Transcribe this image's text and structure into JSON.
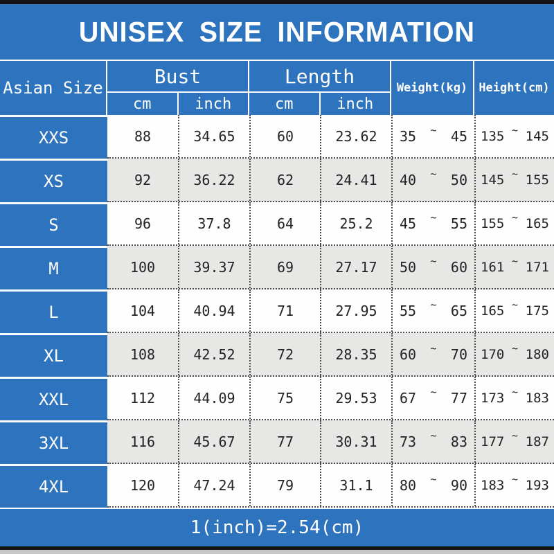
{
  "title": "UNISEX SIZE INFORMATION",
  "header": {
    "size_col": "Asian Size",
    "groups": [
      {
        "label": "Bust",
        "units": [
          "cm",
          "inch"
        ]
      },
      {
        "label": "Length",
        "units": [
          "cm",
          "inch"
        ]
      }
    ],
    "weight_col": "Weight(kg)",
    "height_col": "Height(cm)"
  },
  "tilde": "~",
  "footer": {
    "note": "1(inch)=2.54(cm)"
  },
  "colors": {
    "blue": "#2e73bd",
    "row_white": "#fefefe",
    "row_gray": "#e7e7e5",
    "text_dark": "#222222",
    "text_light": "#ffffff",
    "frame_black": "#141414"
  },
  "chart_data": {
    "type": "table",
    "title": "UNISEX SIZE INFORMATION",
    "columns": [
      "Asian Size",
      "Bust cm",
      "Bust inch",
      "Length cm",
      "Length inch",
      "Weight(kg)",
      "Height(cm)"
    ],
    "note": "1(inch)=2.54(cm)",
    "rows": [
      {
        "size": "XXS",
        "bust_cm": "88",
        "bust_inch": "34.65",
        "length_cm": "60",
        "length_inch": "23.62",
        "weight_min": "35",
        "weight_max": "45",
        "height_min": "135",
        "height_max": "145"
      },
      {
        "size": "XS",
        "bust_cm": "92",
        "bust_inch": "36.22",
        "length_cm": "62",
        "length_inch": "24.41",
        "weight_min": "40",
        "weight_max": "50",
        "height_min": "145",
        "height_max": "155"
      },
      {
        "size": "S",
        "bust_cm": "96",
        "bust_inch": "37.8",
        "length_cm": "64",
        "length_inch": "25.2",
        "weight_min": "45",
        "weight_max": "55",
        "height_min": "155",
        "height_max": "165"
      },
      {
        "size": "M",
        "bust_cm": "100",
        "bust_inch": "39.37",
        "length_cm": "69",
        "length_inch": "27.17",
        "weight_min": "50",
        "weight_max": "60",
        "height_min": "161",
        "height_max": "171"
      },
      {
        "size": "L",
        "bust_cm": "104",
        "bust_inch": "40.94",
        "length_cm": "71",
        "length_inch": "27.95",
        "weight_min": "55",
        "weight_max": "65",
        "height_min": "165",
        "height_max": "175"
      },
      {
        "size": "XL",
        "bust_cm": "108",
        "bust_inch": "42.52",
        "length_cm": "72",
        "length_inch": "28.35",
        "weight_min": "60",
        "weight_max": "70",
        "height_min": "170",
        "height_max": "180"
      },
      {
        "size": "XXL",
        "bust_cm": "112",
        "bust_inch": "44.09",
        "length_cm": "75",
        "length_inch": "29.53",
        "weight_min": "67",
        "weight_max": "77",
        "height_min": "173",
        "height_max": "183"
      },
      {
        "size": "3XL",
        "bust_cm": "116",
        "bust_inch": "45.67",
        "length_cm": "77",
        "length_inch": "30.31",
        "weight_min": "73",
        "weight_max": "83",
        "height_min": "177",
        "height_max": "187"
      },
      {
        "size": "4XL",
        "bust_cm": "120",
        "bust_inch": "47.24",
        "length_cm": "79",
        "length_inch": "31.1",
        "weight_min": "80",
        "weight_max": "90",
        "height_min": "183",
        "height_max": "193"
      }
    ]
  }
}
